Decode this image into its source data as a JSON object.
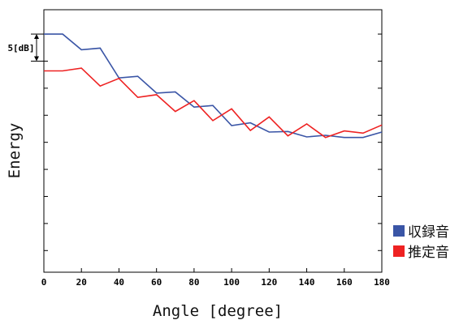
{
  "chart_data": {
    "type": "line",
    "xlabel": "Angle [degree]",
    "ylabel": "Energy",
    "xlim": [
      0,
      180
    ],
    "x_ticks": [
      0,
      20,
      40,
      60,
      80,
      100,
      120,
      140,
      160,
      180
    ],
    "x_tick_labels": [
      "0",
      "20",
      "40",
      "60",
      "80",
      "100",
      "120",
      "140",
      "160",
      "180"
    ],
    "ylim": [
      -44,
      4.5
    ],
    "y_tick_step_db": 5,
    "y_tick_labels_shown": false,
    "grid": false,
    "legend_position": "outside-bottom-right",
    "scale_annotation": {
      "label": "5[dB]",
      "from": 0,
      "to": -5
    },
    "x": [
      0,
      10,
      20,
      30,
      40,
      50,
      60,
      70,
      80,
      90,
      100,
      110,
      120,
      130,
      140,
      150,
      160,
      170,
      180
    ],
    "series": [
      {
        "name": "収録音",
        "color": "#3a55a6",
        "values": [
          0.0,
          0.0,
          -2.9,
          -2.6,
          -8.1,
          -7.8,
          -10.9,
          -10.7,
          -13.5,
          -13.2,
          -16.9,
          -16.4,
          -18.1,
          -18.0,
          -19.0,
          -18.7,
          -19.1,
          -19.1,
          -18.1
        ]
      },
      {
        "name": "推定音",
        "color": "#ee2222",
        "values": [
          -6.8,
          -6.8,
          -6.3,
          -9.6,
          -8.2,
          -11.7,
          -11.2,
          -14.3,
          -12.3,
          -16.0,
          -13.8,
          -17.8,
          -15.3,
          -18.8,
          -16.6,
          -19.1,
          -17.9,
          -18.3,
          -16.8
        ]
      }
    ]
  }
}
